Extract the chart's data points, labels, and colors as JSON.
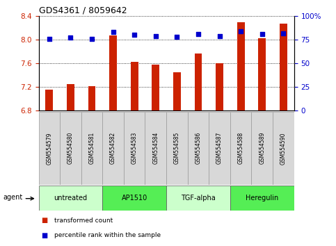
{
  "title": "GDS4361 / 8059642",
  "samples": [
    "GSM554579",
    "GSM554580",
    "GSM554581",
    "GSM554582",
    "GSM554583",
    "GSM554584",
    "GSM554585",
    "GSM554586",
    "GSM554587",
    "GSM554588",
    "GSM554589",
    "GSM554590"
  ],
  "bar_values": [
    7.15,
    7.25,
    7.21,
    8.07,
    7.63,
    7.58,
    7.45,
    7.77,
    7.6,
    8.3,
    8.02,
    8.27
  ],
  "dot_values": [
    76,
    77,
    76,
    83,
    80,
    79,
    78,
    81,
    79,
    84,
    81,
    82
  ],
  "bar_color": "#cc2200",
  "dot_color": "#0000cc",
  "ylim_left": [
    6.8,
    8.4
  ],
  "ylim_right": [
    0,
    100
  ],
  "yticks_left": [
    6.8,
    7.2,
    7.6,
    8.0,
    8.4
  ],
  "yticks_right": [
    0,
    25,
    50,
    75,
    100
  ],
  "groups": [
    {
      "label": "untreated",
      "start": 0,
      "end": 3,
      "color": "#ccffcc"
    },
    {
      "label": "AP1510",
      "start": 3,
      "end": 6,
      "color": "#55ee55"
    },
    {
      "label": "TGF-alpha",
      "start": 6,
      "end": 9,
      "color": "#ccffcc"
    },
    {
      "label": "Heregulin",
      "start": 9,
      "end": 12,
      "color": "#55ee55"
    }
  ],
  "agent_label": "agent",
  "legend_bar_label": "transformed count",
  "legend_dot_label": "percentile rank within the sample",
  "background_color": "#ffffff"
}
